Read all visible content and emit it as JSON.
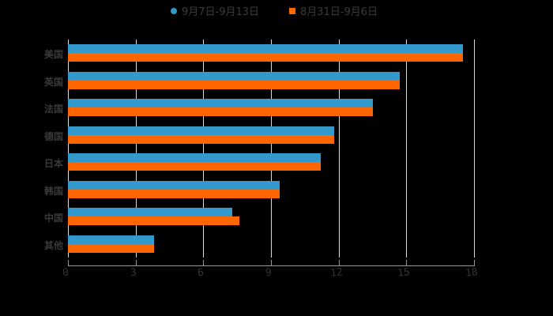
{
  "chart_data": {
    "type": "bar",
    "orientation": "horizontal",
    "title": "",
    "xlabel": "",
    "ylabel": "",
    "categories": [
      "美国",
      "英国",
      "法国",
      "德国",
      "日本",
      "韩国",
      "中国",
      "其他"
    ],
    "series": [
      {
        "name": "9月7日-9月13日",
        "color": "#3399cc",
        "values": [
          17.5,
          14.7,
          13.5,
          11.8,
          11.2,
          9.4,
          7.3,
          3.8
        ]
      },
      {
        "name": "8月31日-9月6日",
        "color": "#ff6600",
        "values": [
          17.5,
          14.7,
          13.5,
          11.8,
          11.2,
          9.4,
          7.6,
          3.8
        ]
      }
    ],
    "xlim": [
      0,
      18
    ],
    "xticks": [
      "0",
      "3",
      "6",
      "9",
      "12",
      "15",
      "18"
    ],
    "grid": true,
    "legend_position": "top"
  },
  "legend": [
    {
      "label": "9月7日-9月13日",
      "color": "#3399cc",
      "shape": "circle"
    },
    {
      "label": "8月31日-9月6日",
      "color": "#ff6600",
      "shape": "square"
    }
  ]
}
